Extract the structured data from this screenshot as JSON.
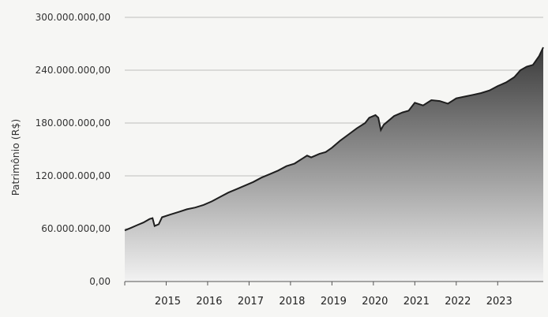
{
  "chart_data": {
    "type": "area",
    "title": "",
    "xlabel": "",
    "ylabel": "Patrimônio (R$)",
    "ylim": [
      0,
      300000000
    ],
    "xlim": [
      2014.0,
      2024.1
    ],
    "grid": true,
    "y_ticks": [
      {
        "value": 0,
        "label": "0,00"
      },
      {
        "value": 60000000,
        "label": "60.000.000,00"
      },
      {
        "value": 120000000,
        "label": "120.000.000,00"
      },
      {
        "value": 180000000,
        "label": "180.000.000,00"
      },
      {
        "value": 240000000,
        "label": "240.000.000,00"
      },
      {
        "value": 300000000,
        "label": "300.000.000,00"
      }
    ],
    "x_ticks": [
      {
        "value": 2015,
        "label": "2015"
      },
      {
        "value": 2016,
        "label": "2016"
      },
      {
        "value": 2017,
        "label": "2017"
      },
      {
        "value": 2018,
        "label": "2018"
      },
      {
        "value": 2019,
        "label": "2019"
      },
      {
        "value": 2020,
        "label": "2020"
      },
      {
        "value": 2021,
        "label": "2021"
      },
      {
        "value": 2022,
        "label": "2022"
      },
      {
        "value": 2023,
        "label": "2023"
      }
    ],
    "colors": {
      "area_top": "#3a3a3a",
      "area_bottom": "#f2f2f2",
      "line": "#1e1e1e"
    },
    "series": [
      {
        "x": [
          2014.0,
          2014.15,
          2014.3,
          2014.45,
          2014.6,
          2014.67,
          2014.72,
          2014.82,
          2014.9,
          2015.1,
          2015.3,
          2015.5,
          2015.7,
          2015.9,
          2016.1,
          2016.3,
          2016.5,
          2016.7,
          2016.9,
          2017.1,
          2017.3,
          2017.5,
          2017.7,
          2017.9,
          2018.1,
          2018.3,
          2018.4,
          2018.5,
          2018.7,
          2018.85,
          2019.0,
          2019.2,
          2019.4,
          2019.6,
          2019.8,
          2019.9,
          2020.05,
          2020.12,
          2020.18,
          2020.25,
          2020.35,
          2020.5,
          2020.7,
          2020.85,
          2021.0,
          2021.2,
          2021.4,
          2021.6,
          2021.8,
          2022.0,
          2022.2,
          2022.4,
          2022.6,
          2022.8,
          2023.0,
          2023.2,
          2023.4,
          2023.55,
          2023.7,
          2023.85,
          2024.0,
          2024.1
        ],
        "values": [
          58000000,
          61000000,
          64000000,
          67000000,
          71000000,
          72000000,
          63000000,
          65000000,
          73000000,
          76000000,
          79000000,
          82000000,
          84000000,
          87000000,
          91000000,
          96000000,
          101000000,
          105000000,
          109000000,
          113000000,
          118000000,
          122000000,
          126000000,
          131000000,
          134000000,
          140000000,
          143000000,
          141000000,
          145000000,
          147000000,
          152000000,
          160000000,
          167000000,
          174000000,
          180000000,
          186000000,
          189000000,
          186000000,
          172000000,
          178000000,
          182000000,
          188000000,
          192000000,
          194000000,
          203000000,
          200000000,
          206000000,
          205000000,
          202000000,
          208000000,
          210000000,
          212000000,
          214000000,
          217000000,
          222000000,
          226000000,
          232000000,
          240000000,
          244000000,
          246000000,
          256000000,
          266000000
        ]
      }
    ]
  }
}
